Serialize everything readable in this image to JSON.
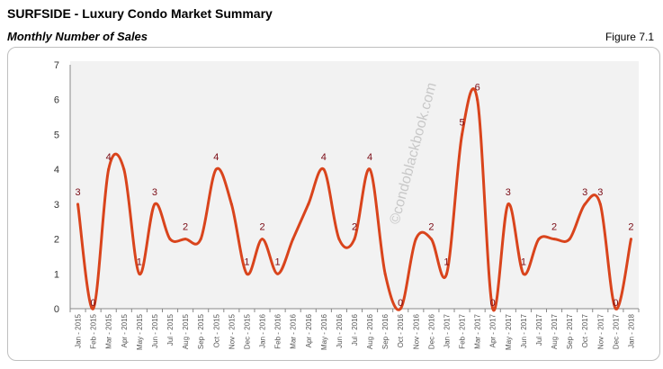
{
  "header": {
    "title": "SURFSIDE - Luxury Condo Market Summary",
    "subtitle": "Monthly Number of Sales",
    "figure": "Figure 7.1"
  },
  "watermark": "©condoblackbook.com",
  "chart_data": {
    "type": "line",
    "smoothed": true,
    "color": "#d9441c",
    "label_color": "#7a0a14",
    "plot_background": "#f2f2f2",
    "ylim": [
      0,
      7
    ],
    "yticks": [
      0,
      1,
      2,
      3,
      4,
      5,
      6,
      7
    ],
    "grid": false,
    "categories": [
      "Jan - 2015",
      "Feb - 2015",
      "Mar - 2015",
      "Apr - 2015",
      "May - 2015",
      "Jun - 2015",
      "Jul - 2015",
      "Aug - 2015",
      "Sep - 2015",
      "Oct - 2015",
      "Nov - 2015",
      "Dec - 2015",
      "Jan - 2016",
      "Feb - 2016",
      "Mar - 2016",
      "Apr - 2016",
      "May - 2016",
      "Jun - 2016",
      "Jul - 2016",
      "Aug - 2016",
      "Sep - 2016",
      "Oct - 2016",
      "Nov - 2016",
      "Dec - 2016",
      "Jan - 2017",
      "Feb - 2017",
      "Mar - 2017",
      "Apr - 2017",
      "May - 2017",
      "Jun - 2017",
      "Jul - 2017",
      "Aug - 2017",
      "Sep - 2017",
      "Oct - 2017",
      "Nov - 2017",
      "Dec - 2017",
      "Jan - 2018"
    ],
    "values": [
      3,
      0,
      4,
      4,
      1,
      3,
      2,
      2,
      2,
      4,
      3,
      1,
      2,
      1,
      2,
      3,
      4,
      2,
      2,
      4,
      1,
      0,
      2,
      2,
      1,
      5,
      6,
      0,
      3,
      1,
      2,
      2,
      2,
      3,
      3,
      0,
      2
    ],
    "labeled_indices": [
      0,
      1,
      2,
      4,
      5,
      7,
      9,
      11,
      12,
      13,
      16,
      18,
      19,
      21,
      23,
      24,
      25,
      26,
      27,
      28,
      29,
      31,
      33,
      34,
      35,
      36
    ]
  }
}
